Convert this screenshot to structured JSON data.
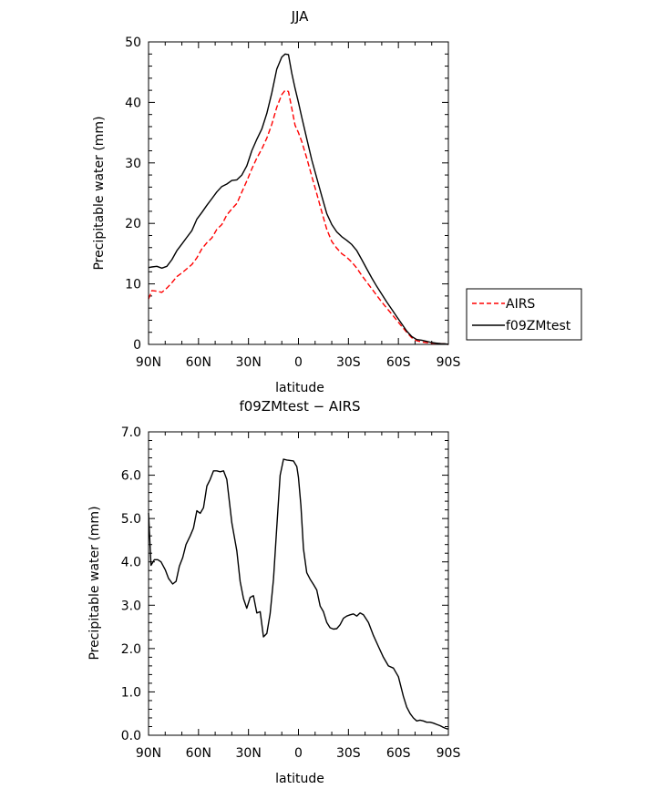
{
  "chart_data": [
    {
      "type": "line",
      "title": "JJA",
      "xlabel": "latitude",
      "ylabel": "Precipitable water (mm)",
      "x_ticks": [
        90,
        60,
        30,
        0,
        -30,
        -60,
        -90
      ],
      "x_tick_labels": [
        "90N",
        "60N",
        "30N",
        "0",
        "30S",
        "60S",
        "90S"
      ],
      "xlim": [
        90,
        -90
      ],
      "ylim": [
        0,
        50
      ],
      "y_ticks": [
        0,
        10,
        20,
        30,
        40,
        50
      ],
      "y_tick_labels": [
        "0",
        "10",
        "20",
        "30",
        "40",
        "50"
      ],
      "legend_position": "right",
      "series": [
        {
          "name": "AIRS",
          "color": "#ff0000",
          "dash": "dashed",
          "x": [
            90,
            88,
            85,
            82,
            79,
            76,
            73,
            70,
            67,
            64,
            61,
            58,
            55,
            52,
            49,
            46,
            43,
            40,
            37,
            34,
            31,
            28,
            25,
            22,
            19,
            16,
            13,
            10,
            8,
            6,
            4,
            2,
            0,
            -2,
            -5,
            -8,
            -11,
            -14,
            -17,
            -20,
            -23,
            -26,
            -29,
            -32,
            -35,
            -38,
            -41,
            -44,
            -47,
            -50,
            -53,
            -56,
            -59,
            -62,
            -65,
            -68,
            -71,
            -74,
            -77,
            -80,
            -83,
            -86,
            -88,
            -90
          ],
          "y": [
            7.5,
            8.9,
            8.8,
            8.6,
            9.3,
            10.2,
            11.2,
            11.8,
            12.5,
            13.2,
            14.3,
            15.8,
            16.8,
            17.6,
            19.0,
            19.8,
            21.4,
            22.4,
            23.3,
            25.2,
            27.0,
            29.0,
            30.8,
            32.3,
            34.1,
            36.4,
            39.2,
            41.3,
            42.0,
            41.8,
            39.0,
            36.2,
            35.0,
            33.5,
            30.8,
            27.8,
            24.9,
            21.9,
            19.0,
            17.0,
            15.9,
            15.0,
            14.4,
            13.6,
            12.6,
            11.4,
            10.3,
            9.2,
            8.1,
            7.0,
            6.0,
            5.0,
            4.0,
            3.0,
            2.0,
            1.1,
            0.6,
            0.4,
            0.3,
            0.2,
            0.2,
            0.1,
            0.1,
            0.0
          ]
        },
        {
          "name": "f09ZMtest",
          "color": "#000000",
          "dash": "solid",
          "x": [
            90,
            88,
            85,
            82,
            79,
            76,
            73,
            70,
            67,
            64,
            61,
            58,
            55,
            52,
            49,
            46,
            43,
            40,
            37,
            34,
            31,
            28,
            25,
            22,
            19,
            16,
            13,
            10,
            8,
            6,
            4,
            2,
            0,
            -2,
            -5,
            -8,
            -11,
            -14,
            -17,
            -20,
            -23,
            -26,
            -29,
            -32,
            -35,
            -38,
            -41,
            -44,
            -47,
            -50,
            -53,
            -56,
            -59,
            -62,
            -65,
            -68,
            -71,
            -74,
            -77,
            -80,
            -83,
            -86,
            -88,
            -90
          ],
          "y": [
            12.7,
            12.8,
            12.9,
            12.6,
            12.9,
            14.0,
            15.5,
            16.6,
            17.7,
            18.8,
            20.7,
            21.8,
            23.0,
            24.1,
            25.2,
            26.1,
            26.5,
            27.1,
            27.2,
            28.0,
            29.5,
            32.0,
            33.9,
            35.6,
            38.2,
            41.6,
            45.5,
            47.5,
            48.0,
            47.9,
            44.8,
            42.3,
            40.0,
            37.5,
            34.0,
            30.5,
            27.5,
            24.5,
            21.6,
            19.8,
            18.6,
            17.8,
            17.2,
            16.5,
            15.5,
            14.0,
            12.5,
            11.0,
            9.6,
            8.3,
            7.0,
            5.8,
            4.6,
            3.4,
            2.2,
            1.3,
            0.8,
            0.7,
            0.5,
            0.3,
            0.2,
            0.1,
            0.1,
            0.0
          ]
        }
      ]
    },
    {
      "type": "line",
      "title": "f09ZMtest − AIRS",
      "xlabel": "latitude",
      "ylabel": "Precipitable water (mm)",
      "x_ticks": [
        90,
        60,
        30,
        0,
        -30,
        -60,
        -90
      ],
      "x_tick_labels": [
        "90N",
        "60N",
        "30N",
        "0",
        "30S",
        "60S",
        "90S"
      ],
      "xlim": [
        90,
        -90
      ],
      "ylim": [
        0,
        7
      ],
      "y_ticks": [
        0,
        1,
        2,
        3,
        4,
        5,
        6,
        7
      ],
      "y_tick_labels": [
        "0.0",
        "1.0",
        "2.0",
        "3.0",
        "4.0",
        "5.0",
        "6.0",
        "7.0"
      ],
      "series": [
        {
          "color": "#000000",
          "dash": "solid",
          "x": [
            90,
            88.5,
            86.5,
            84.5,
            82.5,
            80,
            78,
            75.5,
            73.5,
            71.5,
            69.5,
            67.5,
            65,
            63,
            61,
            59,
            57,
            55,
            53,
            51,
            49,
            47,
            45,
            43,
            40,
            37,
            35,
            33,
            31,
            29,
            27,
            25,
            23,
            21,
            19,
            17,
            15,
            13,
            11,
            9,
            7,
            5,
            3,
            1,
            0,
            -1.5,
            -3,
            -5,
            -7,
            -9,
            -11,
            -13,
            -15,
            -17,
            -19,
            -21,
            -23,
            -25,
            -27,
            -29,
            -31,
            -33,
            -35,
            -37,
            -39,
            -42,
            -45,
            -48,
            -51,
            -54,
            -57,
            -60,
            -63,
            -65,
            -67,
            -69,
            -71,
            -73,
            -75,
            -77,
            -79,
            -81,
            -83,
            -85,
            -87,
            -89,
            -90
          ],
          "y": [
            5.13,
            3.92,
            4.05,
            4.05,
            4.0,
            3.82,
            3.62,
            3.49,
            3.55,
            3.9,
            4.1,
            4.4,
            4.6,
            4.78,
            5.18,
            5.12,
            5.25,
            5.75,
            5.9,
            6.1,
            6.1,
            6.08,
            6.1,
            5.9,
            4.9,
            4.25,
            3.55,
            3.15,
            2.93,
            3.18,
            3.22,
            2.82,
            2.85,
            2.27,
            2.35,
            2.8,
            3.6,
            4.8,
            6.0,
            6.37,
            6.35,
            6.34,
            6.33,
            6.2,
            5.95,
            5.3,
            4.3,
            3.75,
            3.6,
            3.48,
            3.35,
            2.98,
            2.85,
            2.6,
            2.48,
            2.45,
            2.46,
            2.55,
            2.7,
            2.75,
            2.78,
            2.8,
            2.75,
            2.82,
            2.78,
            2.6,
            2.3,
            2.05,
            1.8,
            1.6,
            1.55,
            1.35,
            0.9,
            0.65,
            0.5,
            0.4,
            0.33,
            0.35,
            0.33,
            0.3,
            0.3,
            0.28,
            0.25,
            0.22,
            0.18,
            0.15,
            0.15
          ]
        }
      ]
    }
  ]
}
